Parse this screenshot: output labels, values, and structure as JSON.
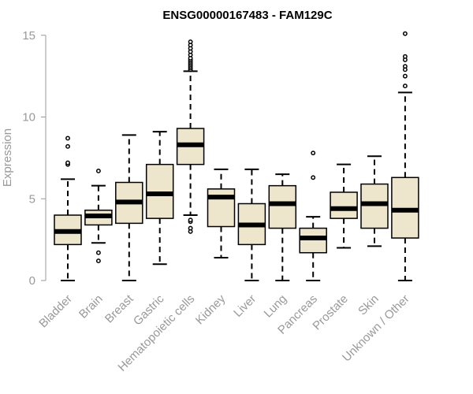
{
  "chart_data": {
    "type": "boxplot",
    "title": "ENSG00000167483 - FAM129C",
    "xlabel": "",
    "ylabel": "Expression",
    "ylim": [
      0,
      15.5
    ],
    "yticks": [
      0,
      5,
      10,
      15
    ],
    "grid": false,
    "colors": {
      "box_fill": "#ede5cc",
      "stroke": "#000000",
      "axis_text": "#999999"
    },
    "categories": [
      "Bladder",
      "Brain",
      "Breast",
      "Gastric",
      "Hematopoietic cells",
      "Kidney",
      "Liver",
      "Lung",
      "Pancreas",
      "Prostate",
      "Skin",
      "Unknown / Other"
    ],
    "boxes": [
      {
        "min": 0,
        "q1": 2.2,
        "median": 3.0,
        "q3": 4.0,
        "max": 6.2,
        "outliers": [
          7.1,
          7.2,
          8.2,
          8.7
        ]
      },
      {
        "min": 2.3,
        "q1": 3.4,
        "median": 3.95,
        "q3": 4.3,
        "max": 5.8,
        "outliers": [
          1.2,
          1.7,
          6.7
        ]
      },
      {
        "min": 0,
        "q1": 3.5,
        "median": 4.8,
        "q3": 6.0,
        "max": 8.9,
        "outliers": []
      },
      {
        "min": 1.0,
        "q1": 3.8,
        "median": 5.3,
        "q3": 7.1,
        "max": 9.1,
        "outliers": []
      },
      {
        "min": 4.0,
        "q1": 7.1,
        "median": 8.3,
        "q3": 9.3,
        "max": 12.8,
        "outliers": [
          3.0,
          3.2,
          3.6,
          3.7,
          12.9,
          13.0,
          13.1,
          13.2,
          13.3,
          13.4,
          13.5,
          13.6,
          13.8,
          14.0,
          14.2,
          14.4,
          14.6
        ]
      },
      {
        "min": 1.4,
        "q1": 3.3,
        "median": 5.1,
        "q3": 5.6,
        "max": 6.8,
        "outliers": []
      },
      {
        "min": 0,
        "q1": 2.2,
        "median": 3.4,
        "q3": 4.7,
        "max": 6.8,
        "outliers": []
      },
      {
        "min": 0,
        "q1": 3.2,
        "median": 4.7,
        "q3": 5.8,
        "max": 6.5,
        "outliers": []
      },
      {
        "min": 0,
        "q1": 1.7,
        "median": 2.6,
        "q3": 3.2,
        "max": 3.9,
        "outliers": [
          6.3,
          7.8
        ]
      },
      {
        "min": 2.0,
        "q1": 3.8,
        "median": 4.4,
        "q3": 5.4,
        "max": 7.1,
        "outliers": []
      },
      {
        "min": 2.1,
        "q1": 3.2,
        "median": 4.7,
        "q3": 5.9,
        "max": 7.6,
        "outliers": []
      },
      {
        "min": 0,
        "q1": 2.6,
        "median": 4.3,
        "q3": 6.3,
        "max": 11.5,
        "outliers": [
          11.9,
          12.5,
          12.9,
          13.1,
          13.5,
          13.7,
          15.1
        ]
      }
    ]
  }
}
